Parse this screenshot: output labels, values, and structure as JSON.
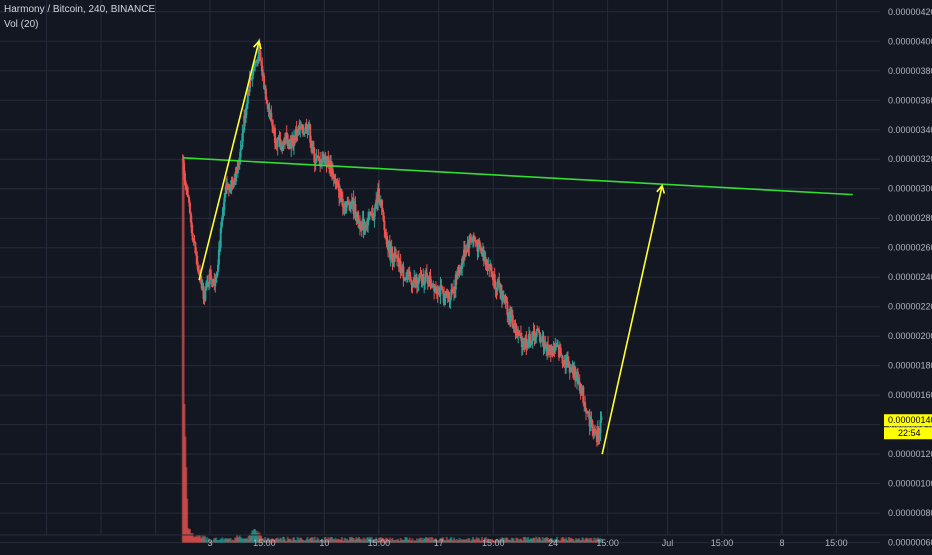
{
  "chart_data": {
    "type": "candlestick",
    "title": "Harmony / Bitcoin, 240, BINANCE",
    "indicator": "Vol (20)",
    "y_ticks": [
      "0.00000420",
      "0.00000400",
      "0.00000380",
      "0.00000360",
      "0.00000340",
      "0.00000320",
      "0.00000300",
      "0.00000280",
      "0.00000260",
      "0.00000240",
      "0.00000220",
      "0.00000200",
      "0.00000180",
      "0.00000160",
      "0.00000140",
      "0.00000120",
      "0.00000100",
      "0.00000080",
      "0.00000060"
    ],
    "y_tick_values": [
      420,
      400,
      380,
      360,
      340,
      320,
      300,
      280,
      260,
      240,
      220,
      200,
      180,
      160,
      140,
      120,
      100,
      80,
      60
    ],
    "ylim": [
      55,
      428
    ],
    "x_ticks": [
      {
        "label": "3",
        "t": 5
      },
      {
        "label": "15:00",
        "t": 15
      },
      {
        "label": "10",
        "t": 26
      },
      {
        "label": "15:00",
        "t": 36
      },
      {
        "label": "17",
        "t": 47
      },
      {
        "label": "15:00",
        "t": 57
      },
      {
        "label": "24",
        "t": 68
      },
      {
        "label": "15:00",
        "t": 78
      },
      {
        "label": "Jul",
        "t": 89
      },
      {
        "label": "15:00",
        "t": 99
      },
      {
        "label": "8",
        "t": 110
      },
      {
        "label": "15:00",
        "t": 120
      }
    ],
    "xlim": [
      -0.5,
      128
    ],
    "price_path": [
      [
        0,
        320
      ],
      [
        1,
        290
      ],
      [
        2,
        265
      ],
      [
        3,
        240
      ],
      [
        4,
        228
      ],
      [
        5,
        242
      ],
      [
        6,
        238
      ],
      [
        7,
        270
      ],
      [
        8,
        300
      ],
      [
        9,
        305
      ],
      [
        10,
        312
      ],
      [
        11,
        338
      ],
      [
        12,
        368
      ],
      [
        13,
        382
      ],
      [
        14,
        392
      ],
      [
        15,
        370
      ],
      [
        16,
        350
      ],
      [
        17,
        335
      ],
      [
        18,
        328
      ],
      [
        19,
        335
      ],
      [
        20,
        330
      ],
      [
        21,
        340
      ],
      [
        22,
        338
      ],
      [
        23,
        345
      ],
      [
        24,
        322
      ],
      [
        25,
        318
      ],
      [
        26,
        322
      ],
      [
        27,
        316
      ],
      [
        28,
        305
      ],
      [
        29,
        295
      ],
      [
        30,
        288
      ],
      [
        31,
        292
      ],
      [
        32,
        280
      ],
      [
        33,
        275
      ],
      [
        34,
        278
      ],
      [
        35,
        282
      ],
      [
        36,
        298
      ],
      [
        37,
        272
      ],
      [
        38,
        258
      ],
      [
        39,
        252
      ],
      [
        40,
        246
      ],
      [
        41,
        240
      ],
      [
        42,
        238
      ],
      [
        43,
        235
      ],
      [
        44,
        240
      ],
      [
        45,
        238
      ],
      [
        46,
        236
      ],
      [
        47,
        232
      ],
      [
        48,
        226
      ],
      [
        49,
        228
      ],
      [
        50,
        236
      ],
      [
        51,
        248
      ],
      [
        52,
        260
      ],
      [
        53,
        268
      ],
      [
        54,
        262
      ],
      [
        55,
        256
      ],
      [
        56,
        250
      ],
      [
        57,
        240
      ],
      [
        58,
        232
      ],
      [
        59,
        226
      ],
      [
        60,
        214
      ],
      [
        61,
        205
      ],
      [
        62,
        198
      ],
      [
        63,
        196
      ],
      [
        64,
        198
      ],
      [
        65,
        202
      ],
      [
        66,
        198
      ],
      [
        67,
        190
      ],
      [
        68,
        192
      ],
      [
        69,
        190
      ],
      [
        70,
        184
      ],
      [
        71,
        180
      ],
      [
        72,
        174
      ],
      [
        73,
        166
      ],
      [
        74,
        152
      ],
      [
        75,
        140
      ],
      [
        76,
        130
      ],
      [
        77,
        145
      ]
    ],
    "volume_path": [
      [
        0,
        195
      ],
      [
        1,
        68
      ],
      [
        2,
        63
      ],
      [
        3,
        63
      ],
      [
        4,
        62
      ],
      [
        5,
        60
      ],
      [
        6,
        61
      ],
      [
        7,
        60
      ],
      [
        8,
        62
      ],
      [
        9,
        60
      ],
      [
        10,
        63
      ],
      [
        11,
        61
      ],
      [
        12,
        61
      ],
      [
        13,
        68
      ],
      [
        14,
        65
      ],
      [
        15,
        61
      ]
    ],
    "volume_base": 60,
    "candle_seed": 7,
    "last_price_label": "0.00000140",
    "countdown_label": "22:54",
    "trendline": {
      "start": [
        0,
        321
      ],
      "end": [
        123,
        296
      ]
    },
    "arrows": [
      {
        "from": [
          3,
          238
        ],
        "to": [
          14,
          400
        ]
      },
      {
        "from": [
          77,
          120
        ],
        "to": [
          88,
          302
        ]
      }
    ],
    "colors": {
      "up": "#26a69a",
      "down": "#ef5350",
      "trendline": "#33dd33",
      "arrow": "#ffff33",
      "last_price_tag": "#ffff00",
      "grid": "#262b3a"
    }
  }
}
